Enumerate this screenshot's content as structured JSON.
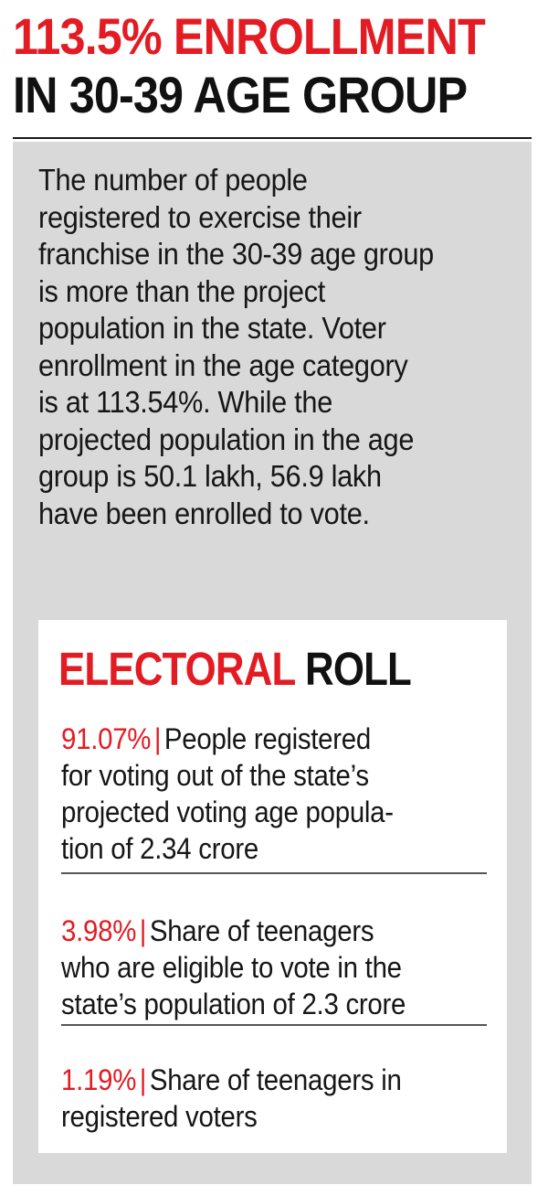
{
  "headline": {
    "line1": "113.5% ENROLLMENT",
    "line2": "IN 30-39 AGE GROUP"
  },
  "intro": {
    "lines": [
      "The number of people",
      "registered to exercise their",
      "franchise in the 30-39 age group",
      "is more than the project",
      "population in the state. Voter",
      "enrollment in the age category",
      "is at 113.54%. While the",
      "projected population in the age",
      "group is 50.1 lakh, 56.9 lakh",
      "have been enrolled to vote."
    ]
  },
  "card": {
    "title_red": "ELECTORAL",
    "title_black": "ROLL",
    "separator": "|",
    "stats": [
      {
        "percent": "91.07%",
        "lines": [
          "People registered",
          "for voting out of the state’s",
          "projected voting age popula-",
          "tion of 2.34 crore"
        ]
      },
      {
        "percent": "3.98%",
        "lines": [
          "Share of teenagers",
          "who are eligible to vote in the",
          "state’s population of 2.3 crore"
        ]
      },
      {
        "percent": "1.19%",
        "lines": [
          "Share of teenagers in",
          "registered voters"
        ]
      }
    ]
  },
  "colors": {
    "accent_red": "#e31b23",
    "panel_grey": "#d9d9d9",
    "text_dark": "#161616"
  }
}
